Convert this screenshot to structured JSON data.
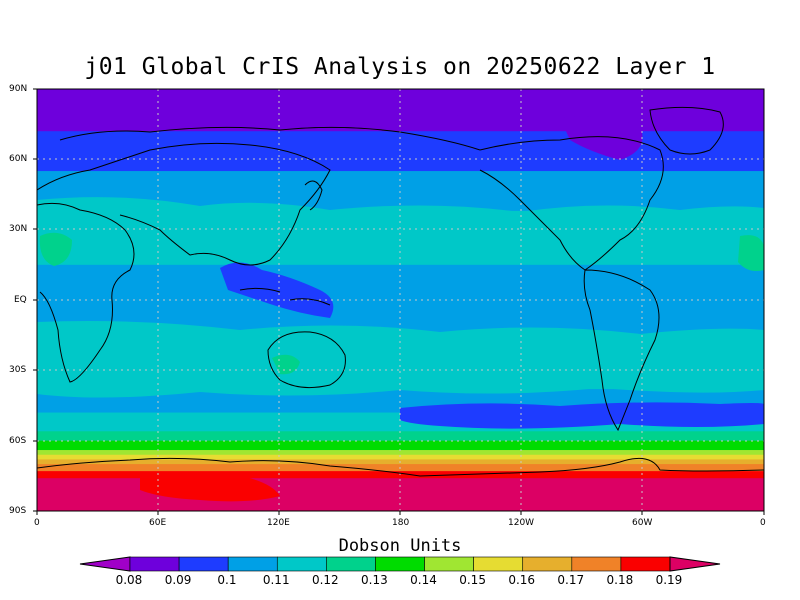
{
  "title": "j01 Global CrIS Analysis on 20250622 Layer 1",
  "lat_labels": [
    "90N",
    "60N",
    "30N",
    "EQ",
    "30S",
    "60S",
    "90S"
  ],
  "lon_labels": [
    "0",
    "60E",
    "120E",
    "180",
    "120W",
    "60W",
    "0"
  ],
  "colorbar": {
    "title": "Dobson Units",
    "labels": [
      "0.08",
      "0.09",
      "0.1",
      "0.11",
      "0.12",
      "0.13",
      "0.14",
      "0.15",
      "0.16",
      "0.17",
      "0.18",
      "0.19"
    ],
    "colors": [
      "#a000c8",
      "#6e00dc",
      "#1e3cff",
      "#00a0e6",
      "#00c8c8",
      "#00d28c",
      "#00dc00",
      "#a0e632",
      "#e6dc32",
      "#e6af2d",
      "#f08228",
      "#fa0000",
      "#dc0064"
    ]
  },
  "chart_data": {
    "type": "heatmap",
    "title": "j01 Global CrIS Analysis on 20250622 Layer 1",
    "units": "Dobson Units",
    "lat_ticks": [
      "90N",
      "60N",
      "30N",
      "EQ",
      "30S",
      "60S",
      "90S"
    ],
    "lon_ticks": [
      "0",
      "60E",
      "120E",
      "180",
      "120W",
      "60W",
      "0"
    ],
    "levels": [
      0.08,
      0.09,
      0.1,
      0.11,
      0.12,
      0.13,
      0.14,
      0.15,
      0.16,
      0.17,
      0.18,
      0.19
    ],
    "zonal_bands": [
      {
        "lat_from": 90,
        "lat_to": 72,
        "level": 0.08
      },
      {
        "lat_from": 72,
        "lat_to": 55,
        "level": 0.09
      },
      {
        "lat_from": 55,
        "lat_to": 38,
        "level": 0.1
      },
      {
        "lat_from": 38,
        "lat_to": 15,
        "level": 0.11
      },
      {
        "lat_from": 15,
        "lat_to": -15,
        "level": 0.1
      },
      {
        "lat_from": -15,
        "lat_to": -38,
        "level": 0.11
      },
      {
        "lat_from": -38,
        "lat_to": -48,
        "level": 0.1
      },
      {
        "lat_from": -48,
        "lat_to": -56,
        "level": 0.11
      },
      {
        "lat_from": -56,
        "lat_to": -60,
        "level": 0.12
      },
      {
        "lat_from": -60,
        "lat_to": -64,
        "level": 0.13
      },
      {
        "lat_from": -64,
        "lat_to": -66,
        "level": 0.14
      },
      {
        "lat_from": -66,
        "lat_to": -68,
        "level": 0.15
      },
      {
        "lat_from": -68,
        "lat_to": -70,
        "level": 0.16
      },
      {
        "lat_from": -70,
        "lat_to": -73,
        "level": 0.17
      },
      {
        "lat_from": -73,
        "lat_to": -76,
        "level": 0.18
      },
      {
        "lat_from": -76,
        "lat_to": -90,
        "level": 0.19
      }
    ]
  }
}
